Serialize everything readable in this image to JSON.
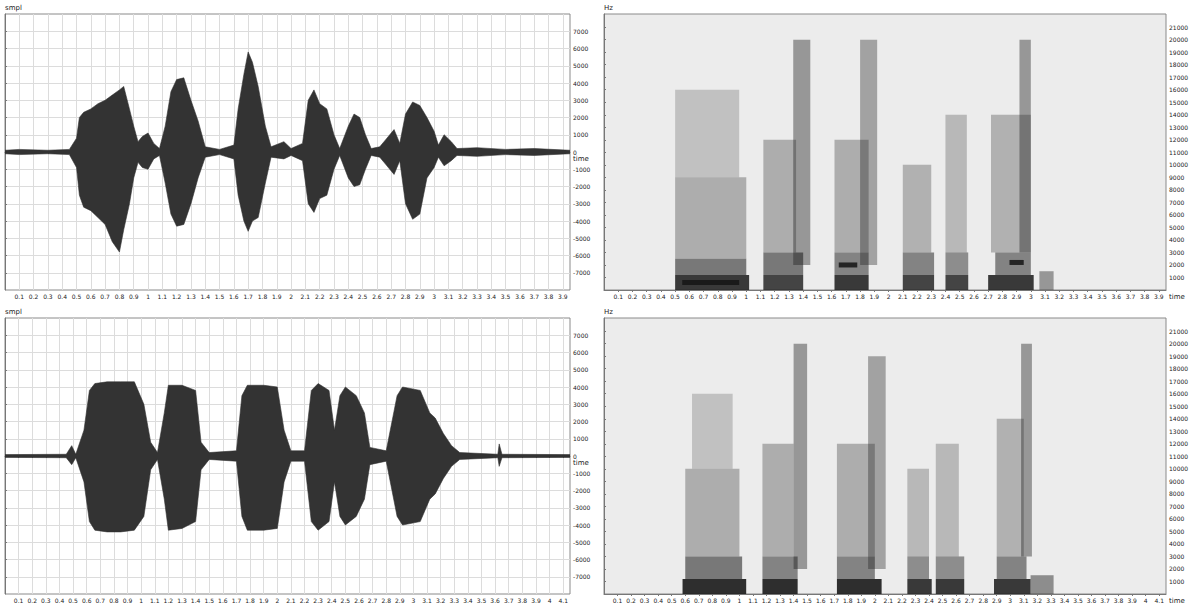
{
  "chart_data": [
    {
      "type": "waveform",
      "x_label": "time",
      "y_label": "smpl",
      "color": "#333333",
      "grid": true,
      "xlim": [
        0,
        3.95
      ],
      "xticks": [
        0.1,
        0.2,
        0.3,
        0.4,
        0.5,
        0.6,
        0.7,
        0.8,
        0.9,
        1.0,
        1.1,
        1.2,
        1.3,
        1.4,
        1.5,
        1.6,
        1.7,
        1.8,
        1.9,
        2.0,
        2.1,
        2.2,
        2.3,
        2.4,
        2.5,
        2.6,
        2.7,
        2.8,
        2.9,
        3.0,
        3.1,
        3.2,
        3.3,
        3.4,
        3.5,
        3.6,
        3.7,
        3.8,
        3.9
      ],
      "ylim": [
        -8000,
        8000
      ],
      "yticks": [
        -7000,
        -6000,
        -5000,
        -4000,
        -3000,
        -2000,
        -1000,
        0,
        1000,
        2000,
        3000,
        4000,
        5000,
        6000,
        7000
      ],
      "x": [
        0.0,
        0.1,
        0.3,
        0.45,
        0.5,
        0.52,
        0.55,
        0.6,
        0.65,
        0.7,
        0.75,
        0.8,
        0.83,
        0.87,
        0.9,
        0.93,
        0.96,
        1.0,
        1.04,
        1.08,
        1.12,
        1.16,
        1.2,
        1.25,
        1.3,
        1.35,
        1.4,
        1.5,
        1.6,
        1.63,
        1.67,
        1.7,
        1.73,
        1.77,
        1.82,
        1.86,
        1.95,
        2.0,
        2.08,
        2.12,
        2.16,
        2.2,
        2.25,
        2.3,
        2.34,
        2.4,
        2.44,
        2.48,
        2.52,
        2.56,
        2.62,
        2.66,
        2.72,
        2.76,
        2.8,
        2.85,
        2.9,
        2.95,
        3.0,
        3.03,
        3.07,
        3.12,
        3.16,
        3.3,
        3.5,
        3.7,
        3.95
      ],
      "values": [
        100,
        150,
        100,
        150,
        800,
        2000,
        2300,
        2500,
        2800,
        3000,
        3300,
        3600,
        3800,
        2500,
        1500,
        600,
        900,
        1100,
        500,
        200,
        1500,
        3500,
        4200,
        4300,
        3000,
        1800,
        300,
        150,
        400,
        2500,
        4500,
        5800,
        5200,
        3800,
        1500,
        300,
        600,
        200,
        500,
        3000,
        3600,
        2800,
        2500,
        1000,
        200,
        1500,
        2200,
        2000,
        1000,
        200,
        300,
        700,
        1300,
        500,
        2200,
        2900,
        2700,
        2000,
        1200,
        400,
        1000,
        600,
        200,
        250,
        150,
        200,
        100
      ],
      "lower": [
        -100,
        -150,
        -100,
        -150,
        -900,
        -2500,
        -3200,
        -3400,
        -3800,
        -4200,
        -5200,
        -5800,
        -4500,
        -3000,
        -1500,
        -600,
        -900,
        -1000,
        -400,
        -200,
        -1800,
        -3600,
        -4300,
        -4200,
        -3000,
        -1500,
        -300,
        -150,
        -400,
        -2500,
        -4000,
        -4600,
        -4000,
        -3800,
        -1800,
        -300,
        -400,
        -200,
        -500,
        -3000,
        -3500,
        -2700,
        -2500,
        -1000,
        -200,
        -1500,
        -2000,
        -1900,
        -1000,
        -200,
        -300,
        -700,
        -1300,
        -500,
        -3000,
        -3900,
        -3600,
        -1500,
        -900,
        -300,
        -800,
        -500,
        -200,
        -250,
        -150,
        -200,
        -100
      ]
    },
    {
      "type": "spectrogram",
      "x_label": "time",
      "y_label": "Hz",
      "color": "#1a1a1a",
      "grid": true,
      "xlim": [
        0,
        3.95
      ],
      "xticks": [
        0.1,
        0.2,
        0.3,
        0.4,
        0.5,
        0.6,
        0.7,
        0.8,
        0.9,
        1.0,
        1.1,
        1.2,
        1.3,
        1.4,
        1.5,
        1.6,
        1.7,
        1.8,
        1.9,
        2.0,
        2.1,
        2.2,
        2.3,
        2.4,
        2.5,
        2.6,
        2.7,
        2.8,
        2.9,
        3.0,
        3.1,
        3.2,
        3.3,
        3.4,
        3.5,
        3.6,
        3.7,
        3.8,
        3.9
      ],
      "ylim": [
        0,
        22050
      ],
      "yticks": [
        1000,
        2000,
        3000,
        4000,
        5000,
        6000,
        7000,
        8000,
        9000,
        10000,
        11000,
        12000,
        13000,
        14000,
        15000,
        16000,
        17000,
        18000,
        19000,
        20000,
        21000
      ],
      "zlim": [
        0,
        1
      ],
      "cells": [
        [
          0.5,
          1.02,
          0,
          1200,
          0.85
        ],
        [
          0.5,
          1.0,
          1200,
          2500,
          0.55
        ],
        [
          0.5,
          1.0,
          2500,
          9000,
          0.3
        ],
        [
          0.5,
          0.95,
          9000,
          16000,
          0.2
        ],
        [
          0.55,
          0.95,
          400,
          800,
          1.0
        ],
        [
          1.12,
          1.4,
          0,
          1200,
          0.8
        ],
        [
          1.12,
          1.4,
          1200,
          3000,
          0.55
        ],
        [
          1.12,
          1.35,
          3000,
          12000,
          0.3
        ],
        [
          1.33,
          1.45,
          2000,
          20000,
          0.4
        ],
        [
          1.62,
          1.86,
          0,
          1200,
          0.85
        ],
        [
          1.62,
          1.86,
          1200,
          3000,
          0.5
        ],
        [
          1.65,
          1.78,
          1800,
          2200,
          0.9
        ],
        [
          1.62,
          1.86,
          3000,
          12000,
          0.3
        ],
        [
          1.8,
          1.92,
          2000,
          20000,
          0.35
        ],
        [
          2.1,
          2.32,
          0,
          1200,
          0.8
        ],
        [
          2.1,
          2.32,
          1200,
          3000,
          0.5
        ],
        [
          2.1,
          2.3,
          3000,
          10000,
          0.28
        ],
        [
          2.4,
          2.56,
          0,
          1200,
          0.8
        ],
        [
          2.4,
          2.56,
          1200,
          3000,
          0.45
        ],
        [
          2.4,
          2.55,
          3000,
          14000,
          0.25
        ],
        [
          2.7,
          3.02,
          0,
          1200,
          0.85
        ],
        [
          2.75,
          3.0,
          1200,
          3000,
          0.5
        ],
        [
          2.85,
          2.95,
          2000,
          2400,
          0.9
        ],
        [
          2.72,
          3.0,
          3000,
          14000,
          0.28
        ],
        [
          2.92,
          3.0,
          3000,
          20000,
          0.4
        ],
        [
          3.06,
          3.16,
          0,
          1500,
          0.4
        ]
      ]
    },
    {
      "type": "waveform",
      "x_label": "time",
      "y_label": "smpl",
      "color": "#333333",
      "grid": true,
      "xlim": [
        0,
        4.15
      ],
      "xticks": [
        0.1,
        0.2,
        0.3,
        0.4,
        0.5,
        0.6,
        0.7,
        0.8,
        0.9,
        1.0,
        1.1,
        1.2,
        1.3,
        1.4,
        1.5,
        1.6,
        1.7,
        1.8,
        1.9,
        2.0,
        2.1,
        2.2,
        2.3,
        2.4,
        2.5,
        2.6,
        2.7,
        2.8,
        2.9,
        3.0,
        3.1,
        3.2,
        3.3,
        3.4,
        3.5,
        3.6,
        3.7,
        3.8,
        3.9,
        4.0,
        4.1
      ],
      "ylim": [
        -8000,
        8000
      ],
      "yticks": [
        -7000,
        -6000,
        -5000,
        -4000,
        -3000,
        -2000,
        -1000,
        0,
        1000,
        2000,
        3000,
        4000,
        5000,
        6000,
        7000
      ],
      "x": [
        0.0,
        0.45,
        0.49,
        0.52,
        0.58,
        0.62,
        0.66,
        0.75,
        0.85,
        0.95,
        1.02,
        1.07,
        1.12,
        1.17,
        1.2,
        1.3,
        1.4,
        1.44,
        1.5,
        1.7,
        1.74,
        1.78,
        1.9,
        2.0,
        2.05,
        2.1,
        2.2,
        2.25,
        2.3,
        2.38,
        2.42,
        2.46,
        2.5,
        2.58,
        2.64,
        2.68,
        2.8,
        2.88,
        2.92,
        3.05,
        3.12,
        3.16,
        3.22,
        3.28,
        3.34,
        3.62,
        3.63,
        3.65,
        4.15
      ],
      "values": [
        80,
        100,
        600,
        100,
        1500,
        3800,
        4200,
        4300,
        4300,
        4300,
        3000,
        800,
        200,
        2500,
        4100,
        4100,
        3800,
        800,
        200,
        300,
        3500,
        4100,
        4100,
        4000,
        1500,
        300,
        300,
        3800,
        4200,
        3800,
        1500,
        3500,
        4000,
        3500,
        2500,
        500,
        300,
        3500,
        4000,
        3800,
        2500,
        2200,
        1300,
        600,
        200,
        100,
        700,
        100,
        80
      ],
      "lower": [
        -80,
        -100,
        -500,
        -100,
        -1500,
        -3800,
        -4300,
        -4400,
        -4400,
        -4300,
        -3500,
        -800,
        -200,
        -2500,
        -4300,
        -4200,
        -3800,
        -800,
        -200,
        -300,
        -3500,
        -4300,
        -4300,
        -4200,
        -1500,
        -300,
        -300,
        -3800,
        -4300,
        -3800,
        -1500,
        -3500,
        -4000,
        -3500,
        -2500,
        -500,
        -300,
        -3500,
        -4000,
        -3800,
        -2500,
        -2200,
        -1300,
        -600,
        -200,
        -100,
        -600,
        -100,
        -80
      ]
    },
    {
      "type": "spectrogram",
      "x_label": "time",
      "y_label": "Hz",
      "color": "#1a1a1a",
      "grid": true,
      "xlim": [
        0,
        4.15
      ],
      "xticks": [
        0.1,
        0.2,
        0.3,
        0.4,
        0.5,
        0.6,
        0.7,
        0.8,
        0.9,
        1.0,
        1.1,
        1.2,
        1.3,
        1.4,
        1.5,
        1.6,
        1.7,
        1.8,
        1.9,
        2.0,
        2.1,
        2.2,
        2.3,
        2.4,
        2.5,
        2.6,
        2.7,
        2.8,
        2.9,
        3.0,
        3.1,
        3.2,
        3.3,
        3.4,
        3.5,
        3.6,
        3.7,
        3.8,
        3.9,
        4.0,
        4.1
      ],
      "ylim": [
        0,
        22050
      ],
      "yticks": [
        1000,
        2000,
        3000,
        4000,
        5000,
        6000,
        7000,
        8000,
        9000,
        10000,
        11000,
        12000,
        13000,
        14000,
        15000,
        16000,
        17000,
        18000,
        19000,
        20000,
        21000
      ],
      "zlim": [
        0,
        1
      ],
      "cells": [
        [
          0.58,
          1.05,
          0,
          1200,
          0.9
        ],
        [
          0.6,
          1.02,
          1200,
          3000,
          0.55
        ],
        [
          0.6,
          1.0,
          3000,
          10000,
          0.3
        ],
        [
          0.65,
          0.95,
          10000,
          16000,
          0.2
        ],
        [
          1.17,
          1.43,
          0,
          1200,
          0.9
        ],
        [
          1.17,
          1.43,
          1200,
          3000,
          0.5
        ],
        [
          1.17,
          1.4,
          3000,
          12000,
          0.3
        ],
        [
          1.4,
          1.5,
          2000,
          20000,
          0.4
        ],
        [
          1.72,
          2.05,
          0,
          1200,
          0.9
        ],
        [
          1.72,
          2.0,
          1200,
          3000,
          0.5
        ],
        [
          1.72,
          2.0,
          3000,
          12000,
          0.3
        ],
        [
          1.95,
          2.08,
          2000,
          19000,
          0.35
        ],
        [
          2.24,
          2.42,
          0,
          1200,
          0.85
        ],
        [
          2.24,
          2.4,
          1200,
          3000,
          0.45
        ],
        [
          2.24,
          2.4,
          3000,
          10000,
          0.25
        ],
        [
          2.45,
          2.66,
          0,
          1200,
          0.85
        ],
        [
          2.45,
          2.66,
          1200,
          3000,
          0.45
        ],
        [
          2.45,
          2.62,
          3000,
          12000,
          0.25
        ],
        [
          2.88,
          3.15,
          0,
          1200,
          0.85
        ],
        [
          2.9,
          3.12,
          1200,
          3000,
          0.5
        ],
        [
          2.9,
          3.1,
          3000,
          14000,
          0.28
        ],
        [
          3.08,
          3.16,
          3000,
          20000,
          0.4
        ],
        [
          3.15,
          3.32,
          0,
          1500,
          0.45
        ]
      ]
    }
  ]
}
